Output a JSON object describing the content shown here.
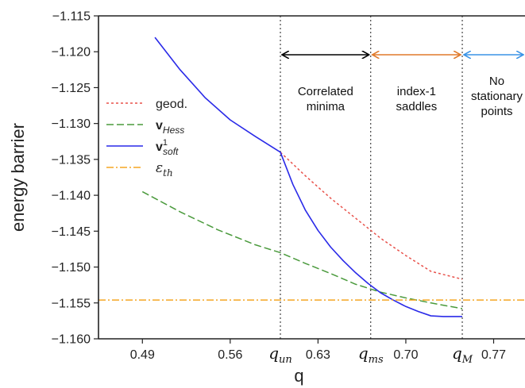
{
  "chart_data": {
    "type": "line",
    "xlabel": "q",
    "ylabel": "energy barrier",
    "xlim": [
      0.455,
      0.795
    ],
    "ylim": [
      -1.16,
      -1.115
    ],
    "x_ticks": [
      0.49,
      0.56,
      0.63,
      0.7,
      0.77
    ],
    "x_tick_labels": [
      "0.49",
      "0.56",
      "0.63",
      "0.70",
      "0.77"
    ],
    "y_ticks": [
      -1.115,
      -1.12,
      -1.125,
      -1.13,
      -1.135,
      -1.14,
      -1.145,
      -1.15,
      -1.155,
      -1.16
    ],
    "y_tick_labels": [
      "-1.115",
      "-1.120",
      "-1.125",
      "-1.130",
      "-1.135",
      "-1.140",
      "-1.145",
      "-1.150",
      "-1.155",
      "-1.160"
    ],
    "legend_position": "center-left",
    "series": [
      {
        "key": "geod",
        "name": "geod.",
        "color": "#e8514a",
        "dash": "dotted",
        "x": [
          0.6,
          0.62,
          0.64,
          0.66,
          0.68,
          0.7,
          0.72,
          0.745
        ],
        "y": [
          -1.134,
          -1.1373,
          -1.1404,
          -1.1432,
          -1.146,
          -1.1484,
          -1.1506,
          -1.1517
        ]
      },
      {
        "key": "vhess",
        "name": "v",
        "name_sub": "Hess",
        "color": "#4a9a3c",
        "dash": "dashed",
        "x": [
          0.49,
          0.52,
          0.55,
          0.58,
          0.6,
          0.62,
          0.64,
          0.66,
          0.68,
          0.7,
          0.72,
          0.745
        ],
        "y": [
          -1.1395,
          -1.1423,
          -1.1448,
          -1.1469,
          -1.148,
          -1.1495,
          -1.1509,
          -1.1524,
          -1.1535,
          -1.1543,
          -1.155,
          -1.1558
        ]
      },
      {
        "key": "vsoft",
        "name": "v",
        "name_sub": "soft",
        "name_sup": "1",
        "color": "#2a2ae8",
        "dash": "solid",
        "x": [
          0.5,
          0.52,
          0.54,
          0.56,
          0.58,
          0.6,
          0.61,
          0.62,
          0.63,
          0.64,
          0.65,
          0.66,
          0.67,
          0.68,
          0.69,
          0.7,
          0.71,
          0.72,
          0.73,
          0.745
        ],
        "y": [
          -1.118,
          -1.1225,
          -1.1264,
          -1.1295,
          -1.1318,
          -1.134,
          -1.1385,
          -1.1421,
          -1.1449,
          -1.1472,
          -1.1491,
          -1.1508,
          -1.1523,
          -1.1536,
          -1.1546,
          -1.1555,
          -1.1562,
          -1.1568,
          -1.1569,
          -1.1569
        ]
      },
      {
        "key": "eth",
        "name": "ε",
        "name_sub": "th",
        "color": "#f5a623",
        "dash": "dashdot",
        "x": [
          0.455,
          0.795
        ],
        "y": [
          -1.1546,
          -1.1546
        ]
      }
    ],
    "vertical_lines": [
      {
        "label": "q",
        "label_sub": "un",
        "x": 0.6
      },
      {
        "label": "q",
        "label_sub": "ms",
        "x": 0.672
      },
      {
        "label": "q",
        "label_sub": "M",
        "x": 0.745
      }
    ],
    "regions": [
      {
        "lines": [
          "Correlated",
          "minima"
        ],
        "x_from": 0.6,
        "x_to": 0.672,
        "arrow_color": "#000000"
      },
      {
        "lines": [
          "index-1",
          "saddles"
        ],
        "x_from": 0.672,
        "x_to": 0.745,
        "arrow_color": "#e07a2b"
      },
      {
        "lines": [
          "No",
          "stationary",
          "points"
        ],
        "x_from": 0.745,
        "x_to": 0.795,
        "arrow_color": "#3a93e6"
      }
    ]
  }
}
